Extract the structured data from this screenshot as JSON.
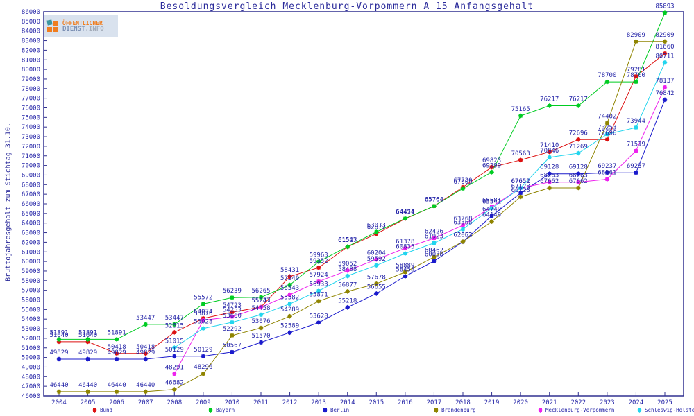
{
  "title": "Besoldungsvergleich Mecklenburg-Vorpommern A 15 Anfangsgehalt",
  "logo": {
    "line1": "ÖFFENTLICHER",
    "line2_strong": "DIENST",
    "line2_rest": ".INFO"
  },
  "y_axis": {
    "label": "Bruttojahresgehalt zum Stichtag 31.10.",
    "min": 46000,
    "max": 86000,
    "step": 1000
  },
  "chart_data": {
    "type": "line",
    "title": "Besoldungsvergleich Mecklenburg-Vorpommern A 15 Anfangsgehalt",
    "xlabel": "",
    "ylabel": "Bruttojahresgehalt zum Stichtag 31.10.",
    "ylim": [
      46000,
      86000
    ],
    "grid": false,
    "legend_position": "bottom",
    "point_labels": true,
    "x": [
      2004,
      2005,
      2006,
      2007,
      2008,
      2009,
      2010,
      2011,
      2012,
      2013,
      2014,
      2015,
      2016,
      2017,
      2018,
      2019,
      2020,
      2021,
      2022,
      2023,
      2024,
      2025
    ],
    "series": [
      {
        "name": "Bund",
        "color": "#dd1111",
        "values": [
          51640,
          51640,
          50418,
          50418,
          52615,
          54074,
          54723,
          55247,
          58431,
          59352,
          61527,
          62872,
          64451,
          65764,
          67730,
          69823,
          70563,
          71410,
          72696,
          72696,
          79281,
          81660
        ]
      },
      {
        "name": "Bayern",
        "color": "#00cc22",
        "values": [
          51891,
          51891,
          51891,
          53447,
          53447,
          55572,
          56239,
          56265,
          57549,
          59963,
          61543,
          63073,
          64474,
          65764,
          67605,
          69299,
          75165,
          76217,
          76217,
          78700,
          78700,
          85893
        ]
      },
      {
        "name": "Berlin",
        "color": "#1a1acc",
        "values": [
          49829,
          49829,
          49829,
          49829,
          50129,
          50129,
          50567,
          51570,
          52589,
          53628,
          55218,
          56655,
          58458,
          60038,
          62052,
          64749,
          67128,
          69128,
          69128,
          69237,
          69237,
          76842
        ]
      },
      {
        "name": "Brandenburg",
        "color": "#8f8400",
        "values": [
          46440,
          46440,
          46440,
          46440,
          46682,
          48296,
          52292,
          53076,
          54289,
          55871,
          56877,
          57678,
          58889,
          60462,
          62063,
          64149,
          66728,
          67662,
          67662,
          74402,
          82909,
          82909
        ]
      },
      {
        "name": "Mecklenburg-Vorpommern",
        "color": "#ee22ee",
        "values": [
          null,
          null,
          null,
          null,
          48291,
          53876,
          54253,
          55233,
          56543,
          57924,
          59052,
          60204,
          61378,
          62426,
          63768,
          65681,
          67652,
          68263,
          68263,
          68561,
          71519,
          78137
        ]
      },
      {
        "name": "Schleswig-Holstein",
        "color": "#22d5ee",
        "values": [
          null,
          null,
          null,
          null,
          51015,
          53028,
          53660,
          54458,
          55582,
          56933,
          58488,
          59592,
          60835,
          61923,
          63368,
          65541,
          67652,
          70846,
          71269,
          73253,
          73944,
          80711
        ]
      }
    ]
  },
  "legend": {
    "items": [
      "Bund",
      "Bayern",
      "Berlin",
      "Brandenburg",
      "Mecklenburg-Vorpommern",
      "Schleswig-Holstein"
    ]
  }
}
